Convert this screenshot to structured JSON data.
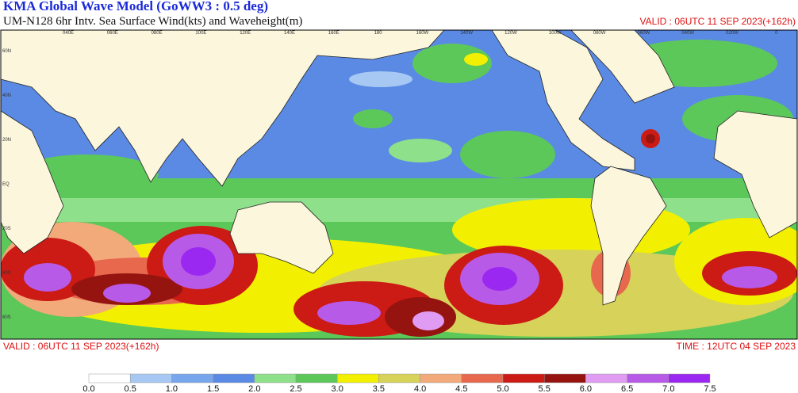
{
  "header": {
    "title": "KMA  Global Wave Model (GoWW3 : 0.5 deg)",
    "subtitle": "UM-N128  6hr Intv. Sea Surface Wind(kts) and Waveheight(m)",
    "valid_top": "VALID : 06UTC 11 SEP 2023(+162h)"
  },
  "map": {
    "lon_labels": [
      "040E",
      "060E",
      "080E",
      "100E",
      "120E",
      "140E",
      "160E",
      "180",
      "160W",
      "140W",
      "120W",
      "100W",
      "080W",
      "060W",
      "040W",
      "020W",
      "0"
    ],
    "lat_labels": [
      "60N",
      "40N",
      "20N",
      "EQ",
      "20S",
      "40S",
      "60S"
    ]
  },
  "footer": {
    "valid_bottom": "VALID : 06UTC 11 SEP 2023(+162h)",
    "time": "TIME : 12UTC 04 SEP 2023"
  },
  "legend": {
    "labels": [
      "0.0",
      "0.5",
      "1.0",
      "1.5",
      "2.0",
      "2.5",
      "3.0",
      "3.5",
      "4.0",
      "4.5",
      "5.0",
      "5.5",
      "6.0",
      "6.5",
      "7.0",
      "7.5"
    ],
    "colors": [
      "#ffffff",
      "#a6c8f2",
      "#78a6ec",
      "#5a8ae4",
      "#8ee08a",
      "#5cc85a",
      "#f2f000",
      "#d6d25a",
      "#f2aa7a",
      "#e8684e",
      "#cc1a14",
      "#961410",
      "#e09cf2",
      "#b85ae8",
      "#9a28f0"
    ]
  }
}
